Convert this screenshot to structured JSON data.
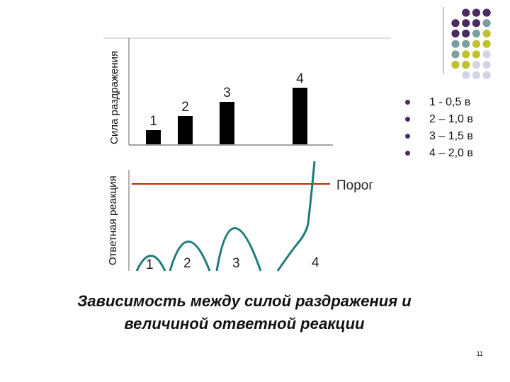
{
  "slide": {
    "page_number": "11",
    "caption_lines": [
      "Зависимость между силой раздражения и",
      "величиной ответной  реакции"
    ]
  },
  "stimulus_panel": {
    "ylabel": "Сила раздражения",
    "bars": [
      {
        "label": "1",
        "value": 0.5
      },
      {
        "label": "2",
        "value": 1.0
      },
      {
        "label": "3",
        "value": 1.5
      },
      {
        "label": "4",
        "value": 2.0
      }
    ]
  },
  "response_panel": {
    "ylabel": "Ответная реакция",
    "threshold_label": "Порог",
    "curve_labels": [
      "1",
      "2",
      "3",
      "4"
    ]
  },
  "legend": {
    "items": [
      "1 - 0,5 в",
      "2 – 1,0 в",
      "3 – 1,5 в",
      "4 – 2,0 в"
    ]
  },
  "colors": {
    "bar": "#000000",
    "threshold": "#cc2200",
    "curve": "#1e7b78",
    "dot_purple": "#4b2c60",
    "dot_teal": "#79a0a0",
    "dot_olive": "#bfc22e",
    "dot_grey": "#d4d5e4"
  }
}
